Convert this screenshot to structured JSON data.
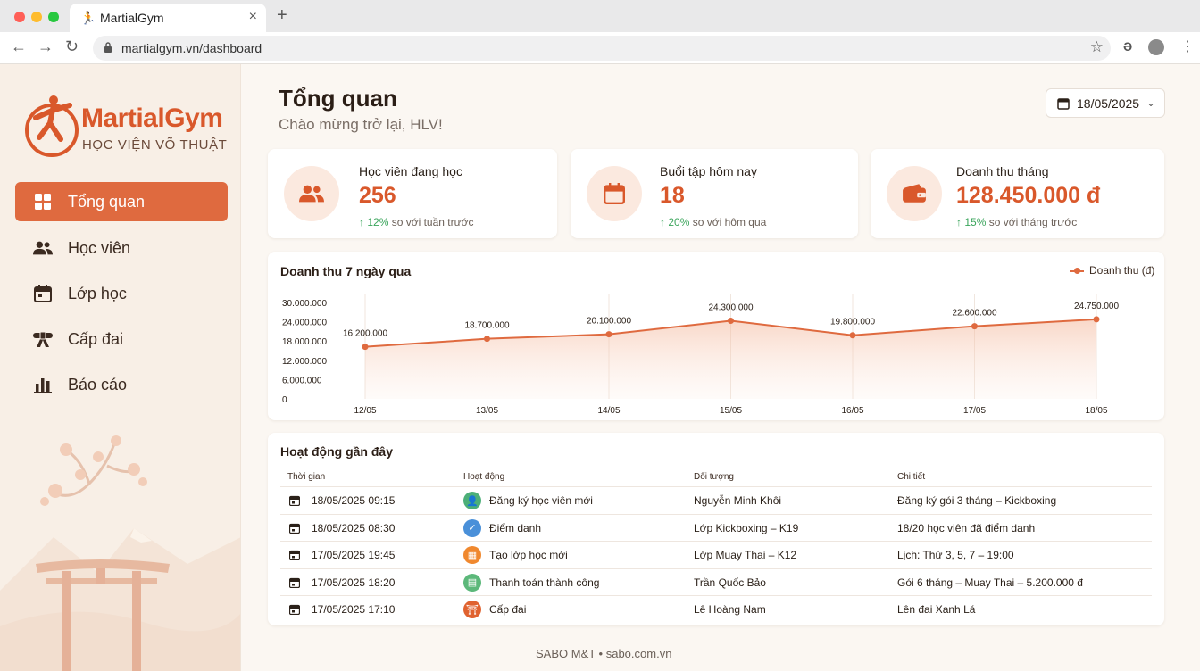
{
  "browser": {
    "tab_title": "MartialGym",
    "url": "martialgym.vn/dashboard"
  },
  "brand": {
    "name": "MartialGym",
    "subtitle": "HỌC VIỆN VÕ THUẬT"
  },
  "sidebar": {
    "items": [
      {
        "label": "Tổng quan",
        "icon": "dashboard-grid-icon",
        "active": true
      },
      {
        "label": "Học viên",
        "icon": "users-icon",
        "active": false
      },
      {
        "label": "Lớp học",
        "icon": "calendar-icon",
        "active": false
      },
      {
        "label": "Cấp đai",
        "icon": "belt-icon",
        "active": false
      },
      {
        "label": "Báo cáo",
        "icon": "bar-chart-icon",
        "active": false
      }
    ]
  },
  "header": {
    "title": "Tổng quan",
    "subtitle": "Chào mừng trở lại, HLV!",
    "date": "18/05/2025"
  },
  "stats": [
    {
      "label": "Học viên đang học",
      "value": "256",
      "delta": "12%",
      "delta_text": "so với tuần trước",
      "icon": "users-icon"
    },
    {
      "label": "Buổi tập hôm nay",
      "value": "18",
      "delta": "20%",
      "delta_text": "so với hôm qua",
      "icon": "calendar-icon"
    },
    {
      "label": "Doanh thu tháng",
      "value": "128.450.000 đ",
      "delta": "15%",
      "delta_text": "so với tháng trước",
      "icon": "wallet-icon"
    }
  ],
  "chart_data": {
    "type": "line",
    "title": "Doanh thu 7 ngày qua",
    "categories": [
      "12/05",
      "13/05",
      "14/05",
      "15/05",
      "16/05",
      "17/05",
      "18/05"
    ],
    "series": [
      {
        "name": "Doanh thu (đ)",
        "values": [
          16200000,
          18700000,
          20100000,
          24300000,
          19800000,
          22600000,
          24750000
        ]
      }
    ],
    "value_labels": [
      "16.200.000",
      "18.700.000",
      "20.100.000",
      "24.300.000",
      "19.800.000",
      "22.600.000",
      "24.750.000"
    ],
    "ylim": [
      0,
      30000000
    ],
    "yticks": [
      "0",
      "6.000.000",
      "12.000.000",
      "18.000.000",
      "24.000.000",
      "30.000.000"
    ],
    "legend_position": "top-right",
    "color": "#df6a3f",
    "area_fill": true
  },
  "activity": {
    "title": "Hoạt động gần đây",
    "headers": [
      "Thời gian",
      "Hoạt động",
      "Đối tượng",
      "Chi tiết"
    ],
    "rows": [
      {
        "time": "18/05/2025 09:15",
        "action": "Đăng ký học viên mới",
        "target": "Nguyễn Minh Khôi",
        "detail": "Đăng ký gói 3 tháng – Kickboxing",
        "icon": "user-add-icon",
        "color": "#4caf78"
      },
      {
        "time": "18/05/2025 08:30",
        "action": "Điểm danh",
        "target": "Lớp Kickboxing – K19",
        "detail": "18/20 học viên đã điểm danh",
        "icon": "check-icon",
        "color": "#4a90d9"
      },
      {
        "time": "17/05/2025 19:45",
        "action": "Tạo lớp học mới",
        "target": "Lớp Muay Thai – K12",
        "detail": "Lịch: Thứ 3, 5, 7 – 19:00",
        "icon": "calendar-icon",
        "color": "#f0882e"
      },
      {
        "time": "17/05/2025 18:20",
        "action": "Thanh toán thành công",
        "target": "Trần Quốc Bảo",
        "detail": "Gói 6 tháng – Muay Thai – 5.200.000 đ",
        "icon": "payment-icon",
        "color": "#5cb87a"
      },
      {
        "time": "17/05/2025 17:10",
        "action": "Cấp đai",
        "target": "Lê Hoàng Nam",
        "detail": "Lên đai Xanh Lá",
        "icon": "belt-icon",
        "color": "#e0622f"
      }
    ]
  },
  "footer": "SABO M&T • sabo.com.vn"
}
